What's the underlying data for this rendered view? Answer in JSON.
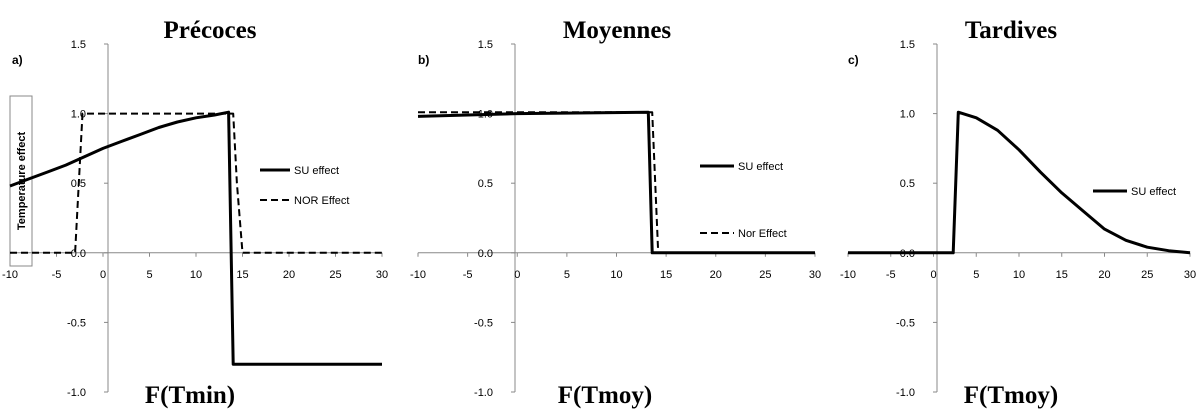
{
  "chart_data": [
    {
      "type": "line",
      "letter": "a)",
      "title": "Précoces",
      "xlabel": "F(Tmin)",
      "ylabel": "Temperature effect",
      "xlim": [
        -10,
        30
      ],
      "ylim": [
        -1.0,
        1.5
      ],
      "xticks": [
        "-10",
        "-5",
        "0",
        "5",
        "10",
        "15",
        "20",
        "25",
        "30"
      ],
      "yticks": [
        "1.5",
        "1.0",
        "0.5",
        "0.0",
        "-0.5",
        "-1.0"
      ],
      "legend_position": "right",
      "series": [
        {
          "name": "SU effect",
          "style": "solid",
          "x": [
            -10,
            -8,
            -6,
            -4,
            -2,
            0,
            2,
            4,
            6,
            8,
            10,
            12,
            13.5,
            14,
            30
          ],
          "y": [
            0.48,
            0.53,
            0.58,
            0.63,
            0.69,
            0.75,
            0.8,
            0.85,
            0.9,
            0.94,
            0.97,
            0.99,
            1.01,
            -0.8,
            -0.8
          ]
        },
        {
          "name": "NOR Effect",
          "style": "dashed",
          "x": [
            -10,
            -3,
            -2.2,
            14,
            14.4,
            15,
            30
          ],
          "y": [
            0.0,
            0.0,
            1.0,
            1.0,
            0.5,
            0.0,
            0.0
          ]
        }
      ]
    },
    {
      "type": "line",
      "letter": "b)",
      "title": "Moyennes",
      "xlabel": "F(Tmoy)",
      "xlim": [
        -10,
        30
      ],
      "ylim": [
        -1.0,
        1.5
      ],
      "xticks": [
        "-10",
        "-5",
        "0",
        "5",
        "10",
        "15",
        "20",
        "25",
        "30"
      ],
      "yticks": [
        "1.5",
        "1.0",
        "0.5",
        "0.0",
        "-0.5",
        "-1.0"
      ],
      "legend_position": "right",
      "series": [
        {
          "name": "SU effect",
          "style": "solid",
          "x": [
            -10,
            0,
            13.2,
            13.6,
            30
          ],
          "y": [
            0.98,
            1.0,
            1.01,
            0.0,
            0.0
          ]
        },
        {
          "name": "Nor Effect",
          "style": "dashed",
          "x": [
            -10,
            13.6,
            14.2,
            30
          ],
          "y": [
            1.01,
            1.01,
            0.0,
            0.0
          ]
        }
      ]
    },
    {
      "type": "line",
      "letter": "c)",
      "title": "Tardives",
      "xlabel": "F(Tmoy)",
      "xlim": [
        -10,
        30
      ],
      "ylim": [
        -1.0,
        1.5
      ],
      "xticks": [
        "-10",
        "-5",
        "0",
        "5",
        "10",
        "15",
        "20",
        "25",
        "30"
      ],
      "yticks": [
        "1.5",
        "1.0",
        "0.5",
        "0.0",
        "-0.5",
        "-1.0"
      ],
      "legend_position": "right",
      "series": [
        {
          "name": "SU effect",
          "style": "solid",
          "x": [
            -10,
            2.3,
            2.9,
            5,
            7.5,
            10,
            12.5,
            15,
            17.5,
            20,
            22.5,
            25,
            27.5,
            30
          ],
          "y": [
            0.0,
            0.0,
            1.01,
            0.97,
            0.88,
            0.74,
            0.58,
            0.43,
            0.3,
            0.17,
            0.09,
            0.04,
            0.015,
            0.0
          ]
        }
      ]
    }
  ]
}
